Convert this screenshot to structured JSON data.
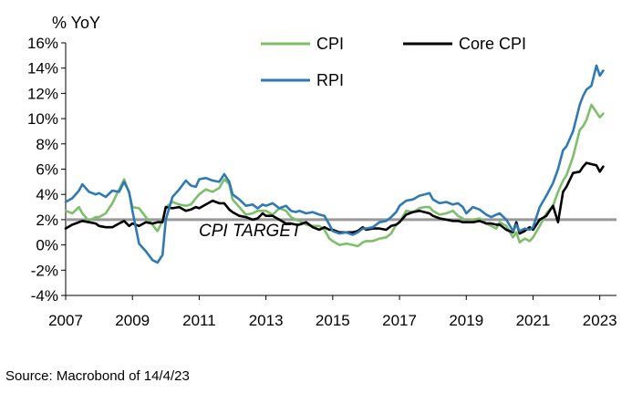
{
  "chart_data": {
    "type": "line",
    "ylabel": "% YoY",
    "ylim": [
      -4,
      16
    ],
    "yticks": [
      16,
      14,
      12,
      10,
      8,
      6,
      4,
      2,
      0,
      -2,
      -4
    ],
    "ytick_labels": [
      "16%",
      "14%",
      "12%",
      "10%",
      "8%",
      "6%",
      "4%",
      "2%",
      "0%",
      "-2%",
      "-4%"
    ],
    "xlim": [
      2007,
      2023.5
    ],
    "xticks": [
      2007,
      2009,
      2011,
      2013,
      2015,
      2017,
      2019,
      2021,
      2023
    ],
    "xtick_labels": [
      "2007",
      "2009",
      "2011",
      "2013",
      "2015",
      "2017",
      "2019",
      "2021",
      "2023"
    ],
    "target": {
      "value": 2,
      "label": "CPI TARGET",
      "color": "#999999"
    },
    "legend": [
      "CPI",
      "Core CPI",
      "RPI"
    ],
    "series": [
      {
        "name": "CPI",
        "color": "#7dbf6a",
        "points": [
          [
            2007.0,
            2.7
          ],
          [
            2007.2,
            2.5
          ],
          [
            2007.4,
            3.0
          ],
          [
            2007.5,
            2.5
          ],
          [
            2007.7,
            1.9
          ],
          [
            2007.9,
            2.2
          ],
          [
            2008.0,
            2.2
          ],
          [
            2008.2,
            2.5
          ],
          [
            2008.4,
            3.3
          ],
          [
            2008.6,
            4.4
          ],
          [
            2008.75,
            5.2
          ],
          [
            2008.9,
            4.1
          ],
          [
            2009.0,
            3.0
          ],
          [
            2009.2,
            2.9
          ],
          [
            2009.4,
            2.2
          ],
          [
            2009.6,
            1.6
          ],
          [
            2009.75,
            1.1
          ],
          [
            2009.9,
            1.9
          ],
          [
            2010.0,
            3.0
          ],
          [
            2010.2,
            3.4
          ],
          [
            2010.4,
            3.2
          ],
          [
            2010.6,
            3.1
          ],
          [
            2010.75,
            3.2
          ],
          [
            2010.9,
            3.7
          ],
          [
            2011.0,
            4.0
          ],
          [
            2011.2,
            4.4
          ],
          [
            2011.4,
            4.2
          ],
          [
            2011.6,
            4.5
          ],
          [
            2011.75,
            5.2
          ],
          [
            2011.9,
            4.8
          ],
          [
            2012.0,
            3.6
          ],
          [
            2012.2,
            3.0
          ],
          [
            2012.4,
            2.4
          ],
          [
            2012.6,
            2.5
          ],
          [
            2012.75,
            2.7
          ],
          [
            2012.9,
            2.7
          ],
          [
            2013.0,
            2.7
          ],
          [
            2013.2,
            2.4
          ],
          [
            2013.4,
            2.9
          ],
          [
            2013.6,
            2.7
          ],
          [
            2013.75,
            2.2
          ],
          [
            2013.9,
            2.0
          ],
          [
            2014.0,
            1.9
          ],
          [
            2014.2,
            1.6
          ],
          [
            2014.4,
            1.5
          ],
          [
            2014.6,
            1.5
          ],
          [
            2014.75,
            1.2
          ],
          [
            2014.9,
            0.5
          ],
          [
            2015.0,
            0.3
          ],
          [
            2015.2,
            0.0
          ],
          [
            2015.4,
            0.1
          ],
          [
            2015.6,
            0.0
          ],
          [
            2015.75,
            -0.1
          ],
          [
            2015.9,
            0.2
          ],
          [
            2016.0,
            0.3
          ],
          [
            2016.2,
            0.3
          ],
          [
            2016.4,
            0.5
          ],
          [
            2016.6,
            0.6
          ],
          [
            2016.75,
            0.9
          ],
          [
            2016.9,
            1.6
          ],
          [
            2017.0,
            1.8
          ],
          [
            2017.2,
            2.7
          ],
          [
            2017.4,
            2.6
          ],
          [
            2017.6,
            2.9
          ],
          [
            2017.75,
            3.0
          ],
          [
            2017.9,
            3.0
          ],
          [
            2018.0,
            2.7
          ],
          [
            2018.2,
            2.4
          ],
          [
            2018.4,
            2.5
          ],
          [
            2018.6,
            2.7
          ],
          [
            2018.75,
            2.3
          ],
          [
            2018.9,
            2.1
          ],
          [
            2019.0,
            1.8
          ],
          [
            2019.2,
            2.0
          ],
          [
            2019.4,
            2.1
          ],
          [
            2019.6,
            1.7
          ],
          [
            2019.75,
            1.5
          ],
          [
            2019.9,
            1.3
          ],
          [
            2020.0,
            1.8
          ],
          [
            2020.2,
            1.5
          ],
          [
            2020.4,
            0.6
          ],
          [
            2020.5,
            1.0
          ],
          [
            2020.6,
            0.2
          ],
          [
            2020.75,
            0.5
          ],
          [
            2020.9,
            0.3
          ],
          [
            2021.0,
            0.6
          ],
          [
            2021.2,
            1.5
          ],
          [
            2021.4,
            2.5
          ],
          [
            2021.6,
            3.1
          ],
          [
            2021.75,
            4.2
          ],
          [
            2021.9,
            5.1
          ],
          [
            2022.0,
            5.5
          ],
          [
            2022.2,
            7.0
          ],
          [
            2022.4,
            9.1
          ],
          [
            2022.5,
            9.4
          ],
          [
            2022.6,
            9.9
          ],
          [
            2022.75,
            11.1
          ],
          [
            2022.9,
            10.5
          ],
          [
            2023.0,
            10.1
          ],
          [
            2023.1,
            10.4
          ]
        ]
      },
      {
        "name": "Core CPI",
        "color": "#000000",
        "points": [
          [
            2007.0,
            1.3
          ],
          [
            2007.2,
            1.6
          ],
          [
            2007.4,
            1.8
          ],
          [
            2007.5,
            1.9
          ],
          [
            2007.7,
            1.8
          ],
          [
            2007.9,
            1.7
          ],
          [
            2008.0,
            1.5
          ],
          [
            2008.2,
            1.4
          ],
          [
            2008.4,
            1.4
          ],
          [
            2008.6,
            1.7
          ],
          [
            2008.75,
            1.9
          ],
          [
            2008.9,
            1.5
          ],
          [
            2009.0,
            1.7
          ],
          [
            2009.2,
            1.5
          ],
          [
            2009.4,
            1.8
          ],
          [
            2009.6,
            1.7
          ],
          [
            2009.75,
            1.8
          ],
          [
            2009.9,
            1.8
          ],
          [
            2010.0,
            3.0
          ],
          [
            2010.2,
            2.9
          ],
          [
            2010.4,
            3.0
          ],
          [
            2010.6,
            2.7
          ],
          [
            2010.75,
            2.8
          ],
          [
            2010.9,
            3.0
          ],
          [
            2011.0,
            2.9
          ],
          [
            2011.2,
            3.2
          ],
          [
            2011.4,
            3.5
          ],
          [
            2011.6,
            3.3
          ],
          [
            2011.75,
            3.3
          ],
          [
            2011.9,
            2.8
          ],
          [
            2012.0,
            2.6
          ],
          [
            2012.2,
            2.3
          ],
          [
            2012.4,
            2.2
          ],
          [
            2012.6,
            2.0
          ],
          [
            2012.75,
            2.1
          ],
          [
            2012.9,
            2.5
          ],
          [
            2013.0,
            2.3
          ],
          [
            2013.2,
            2.3
          ],
          [
            2013.4,
            2.0
          ],
          [
            2013.6,
            1.7
          ],
          [
            2013.75,
            1.7
          ],
          [
            2013.9,
            1.6
          ],
          [
            2014.0,
            1.6
          ],
          [
            2014.2,
            1.8
          ],
          [
            2014.4,
            1.4
          ],
          [
            2014.6,
            1.2
          ],
          [
            2014.75,
            1.4
          ],
          [
            2014.9,
            1.2
          ],
          [
            2015.0,
            1.2
          ],
          [
            2015.2,
            1.0
          ],
          [
            2015.4,
            1.0
          ],
          [
            2015.6,
            1.0
          ],
          [
            2015.75,
            1.1
          ],
          [
            2015.9,
            1.4
          ],
          [
            2016.0,
            1.2
          ],
          [
            2016.2,
            1.3
          ],
          [
            2016.4,
            1.3
          ],
          [
            2016.6,
            1.2
          ],
          [
            2016.75,
            1.5
          ],
          [
            2016.9,
            1.6
          ],
          [
            2017.0,
            1.8
          ],
          [
            2017.2,
            2.4
          ],
          [
            2017.4,
            2.6
          ],
          [
            2017.6,
            2.7
          ],
          [
            2017.75,
            2.6
          ],
          [
            2017.9,
            2.5
          ],
          [
            2018.0,
            2.3
          ],
          [
            2018.2,
            2.1
          ],
          [
            2018.4,
            2.0
          ],
          [
            2018.6,
            1.9
          ],
          [
            2018.75,
            1.9
          ],
          [
            2018.9,
            1.8
          ],
          [
            2019.0,
            1.8
          ],
          [
            2019.2,
            1.8
          ],
          [
            2019.4,
            1.9
          ],
          [
            2019.6,
            1.7
          ],
          [
            2019.75,
            1.7
          ],
          [
            2019.9,
            1.6
          ],
          [
            2020.0,
            1.6
          ],
          [
            2020.2,
            1.2
          ],
          [
            2020.4,
            1.0
          ],
          [
            2020.5,
            1.8
          ],
          [
            2020.6,
            0.9
          ],
          [
            2020.75,
            1.1
          ],
          [
            2020.9,
            1.4
          ],
          [
            2021.0,
            1.2
          ],
          [
            2021.2,
            2.0
          ],
          [
            2021.4,
            2.3
          ],
          [
            2021.6,
            3.1
          ],
          [
            2021.75,
            1.8
          ],
          [
            2021.9,
            4.2
          ],
          [
            2022.0,
            4.6
          ],
          [
            2022.2,
            5.7
          ],
          [
            2022.4,
            5.8
          ],
          [
            2022.5,
            6.2
          ],
          [
            2022.6,
            6.5
          ],
          [
            2022.75,
            6.4
          ],
          [
            2022.9,
            6.3
          ],
          [
            2023.0,
            5.8
          ],
          [
            2023.1,
            6.2
          ]
        ]
      },
      {
        "name": "RPI",
        "color": "#2f7ab4",
        "points": [
          [
            2007.0,
            3.4
          ],
          [
            2007.2,
            3.7
          ],
          [
            2007.4,
            4.3
          ],
          [
            2007.5,
            4.8
          ],
          [
            2007.7,
            4.2
          ],
          [
            2007.9,
            4.0
          ],
          [
            2008.0,
            4.1
          ],
          [
            2008.2,
            3.8
          ],
          [
            2008.4,
            4.3
          ],
          [
            2008.6,
            4.2
          ],
          [
            2008.75,
            5.0
          ],
          [
            2008.9,
            4.2
          ],
          [
            2009.0,
            2.7
          ],
          [
            2009.2,
            0.1
          ],
          [
            2009.4,
            -0.5
          ],
          [
            2009.6,
            -1.2
          ],
          [
            2009.75,
            -1.4
          ],
          [
            2009.9,
            -0.8
          ],
          [
            2010.0,
            2.0
          ],
          [
            2010.2,
            3.8
          ],
          [
            2010.4,
            4.4
          ],
          [
            2010.6,
            5.1
          ],
          [
            2010.75,
            4.7
          ],
          [
            2010.9,
            4.6
          ],
          [
            2011.0,
            5.2
          ],
          [
            2011.2,
            5.3
          ],
          [
            2011.4,
            5.1
          ],
          [
            2011.6,
            5.0
          ],
          [
            2011.75,
            5.6
          ],
          [
            2011.9,
            5.0
          ],
          [
            2012.0,
            4.0
          ],
          [
            2012.2,
            3.6
          ],
          [
            2012.4,
            3.1
          ],
          [
            2012.6,
            3.2
          ],
          [
            2012.75,
            2.9
          ],
          [
            2012.9,
            3.2
          ],
          [
            2013.0,
            3.1
          ],
          [
            2013.2,
            3.3
          ],
          [
            2013.4,
            2.9
          ],
          [
            2013.6,
            3.1
          ],
          [
            2013.75,
            2.7
          ],
          [
            2013.9,
            2.6
          ],
          [
            2014.0,
            2.7
          ],
          [
            2014.2,
            2.5
          ],
          [
            2014.4,
            2.6
          ],
          [
            2014.6,
            2.4
          ],
          [
            2014.75,
            2.3
          ],
          [
            2014.9,
            1.6
          ],
          [
            2015.0,
            1.1
          ],
          [
            2015.2,
            0.9
          ],
          [
            2015.4,
            1.0
          ],
          [
            2015.6,
            0.8
          ],
          [
            2015.75,
            1.0
          ],
          [
            2015.9,
            1.3
          ],
          [
            2016.0,
            1.3
          ],
          [
            2016.2,
            1.4
          ],
          [
            2016.4,
            1.8
          ],
          [
            2016.6,
            1.9
          ],
          [
            2016.75,
            2.2
          ],
          [
            2016.9,
            2.6
          ],
          [
            2017.0,
            3.1
          ],
          [
            2017.2,
            3.5
          ],
          [
            2017.4,
            3.6
          ],
          [
            2017.6,
            3.9
          ],
          [
            2017.75,
            4.0
          ],
          [
            2017.9,
            4.1
          ],
          [
            2018.0,
            3.6
          ],
          [
            2018.2,
            3.3
          ],
          [
            2018.4,
            3.4
          ],
          [
            2018.6,
            3.2
          ],
          [
            2018.75,
            3.3
          ],
          [
            2018.9,
            3.0
          ],
          [
            2019.0,
            2.5
          ],
          [
            2019.2,
            3.0
          ],
          [
            2019.4,
            2.8
          ],
          [
            2019.6,
            2.4
          ],
          [
            2019.75,
            2.2
          ],
          [
            2019.9,
            2.4
          ],
          [
            2020.0,
            2.5
          ],
          [
            2020.2,
            2.0
          ],
          [
            2020.4,
            1.1
          ],
          [
            2020.5,
            1.6
          ],
          [
            2020.6,
            1.1
          ],
          [
            2020.75,
            1.3
          ],
          [
            2020.9,
            1.2
          ],
          [
            2021.0,
            1.4
          ],
          [
            2021.2,
            3.0
          ],
          [
            2021.4,
            3.9
          ],
          [
            2021.6,
            4.9
          ],
          [
            2021.75,
            6.0
          ],
          [
            2021.9,
            7.5
          ],
          [
            2022.0,
            7.8
          ],
          [
            2022.2,
            9.0
          ],
          [
            2022.4,
            11.1
          ],
          [
            2022.5,
            11.8
          ],
          [
            2022.6,
            12.3
          ],
          [
            2022.75,
            12.6
          ],
          [
            2022.9,
            14.2
          ],
          [
            2023.0,
            13.4
          ],
          [
            2023.1,
            13.8
          ]
        ]
      }
    ]
  },
  "footer": {
    "source": "Source: Macrobond of 14/4/23"
  }
}
